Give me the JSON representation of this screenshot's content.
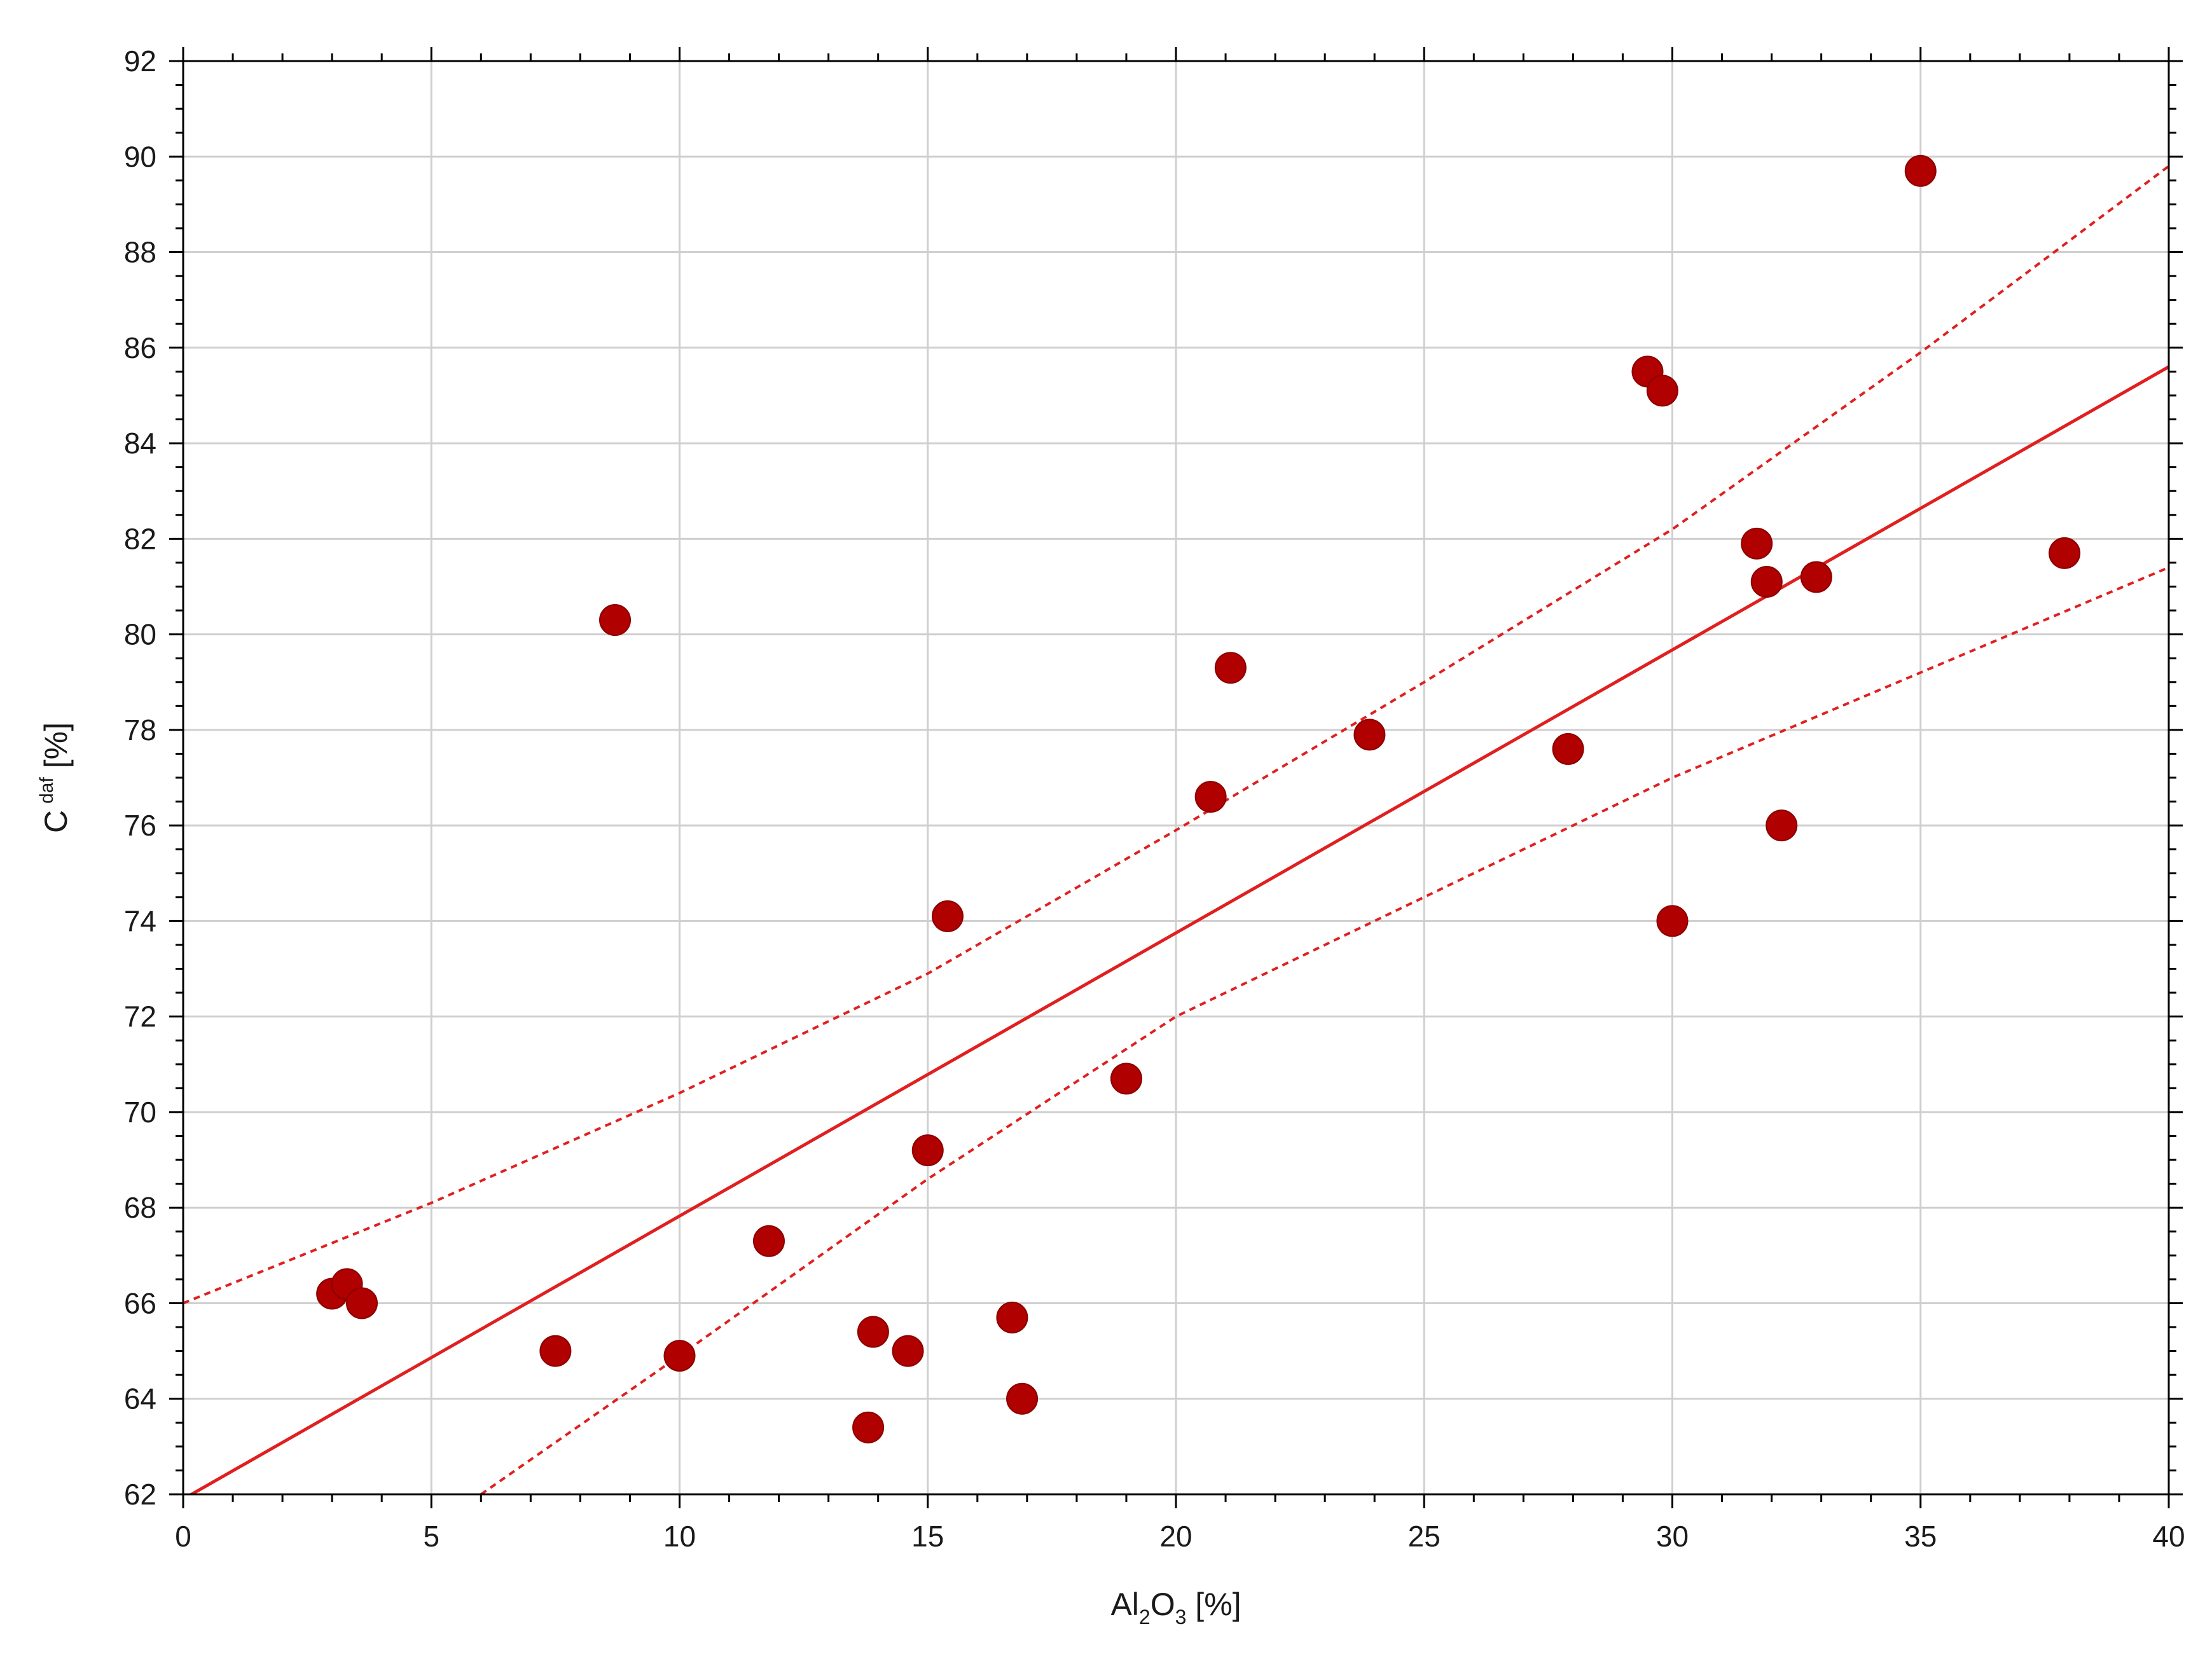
{
  "chart_data": {
    "type": "scatter",
    "xlabel": {
      "base": "Al",
      "sub1": "2",
      "mid": "O",
      "sub2": "3",
      "unit": " [%]"
    },
    "ylabel": {
      "base": "C",
      "sup": "daf",
      "unit": " [%]"
    },
    "xlim": [
      0,
      40
    ],
    "ylim": [
      62,
      92
    ],
    "x_ticks": [
      0,
      5,
      10,
      15,
      20,
      25,
      30,
      35,
      40
    ],
    "y_ticks": [
      62,
      64,
      66,
      68,
      70,
      72,
      74,
      76,
      78,
      80,
      82,
      84,
      86,
      88,
      90,
      92
    ],
    "grid": true,
    "colors": {
      "points": "#b00000",
      "fit_line": "#e02020",
      "grid": "#cfcfcf",
      "frame": "#000000"
    },
    "points": [
      {
        "x": 3.0,
        "y": 66.2
      },
      {
        "x": 3.3,
        "y": 66.4
      },
      {
        "x": 3.6,
        "y": 66.0
      },
      {
        "x": 7.5,
        "y": 65.0
      },
      {
        "x": 8.7,
        "y": 80.3
      },
      {
        "x": 10.0,
        "y": 64.9
      },
      {
        "x": 11.8,
        "y": 67.3
      },
      {
        "x": 13.8,
        "y": 63.4
      },
      {
        "x": 13.9,
        "y": 65.4
      },
      {
        "x": 14.6,
        "y": 65.0
      },
      {
        "x": 15.0,
        "y": 69.2
      },
      {
        "x": 15.4,
        "y": 74.1
      },
      {
        "x": 16.7,
        "y": 65.7
      },
      {
        "x": 16.9,
        "y": 64.0
      },
      {
        "x": 19.0,
        "y": 70.7
      },
      {
        "x": 20.7,
        "y": 76.6
      },
      {
        "x": 21.1,
        "y": 79.3
      },
      {
        "x": 23.9,
        "y": 77.9
      },
      {
        "x": 27.9,
        "y": 77.6
      },
      {
        "x": 29.5,
        "y": 85.5
      },
      {
        "x": 29.8,
        "y": 85.1
      },
      {
        "x": 30.0,
        "y": 74.0
      },
      {
        "x": 31.7,
        "y": 81.9
      },
      {
        "x": 31.9,
        "y": 81.1
      },
      {
        "x": 32.2,
        "y": 76.0
      },
      {
        "x": 32.9,
        "y": 81.2
      },
      {
        "x": 35.0,
        "y": 89.7
      },
      {
        "x": 37.9,
        "y": 81.7
      }
    ],
    "fit_line": {
      "x": [
        0,
        40
      ],
      "y": [
        61.9,
        85.6
      ]
    },
    "confidence_upper": {
      "x": [
        0,
        5,
        10,
        15,
        20,
        25,
        30,
        35,
        40
      ],
      "y": [
        66.0,
        68.1,
        70.4,
        72.9,
        75.9,
        79.0,
        82.2,
        85.9,
        89.8
      ]
    },
    "confidence_lower": {
      "x": [
        6,
        10,
        15,
        20,
        25,
        30,
        35,
        40
      ],
      "y": [
        62.0,
        64.9,
        68.6,
        72.0,
        74.5,
        77.0,
        79.2,
        81.4
      ]
    }
  }
}
